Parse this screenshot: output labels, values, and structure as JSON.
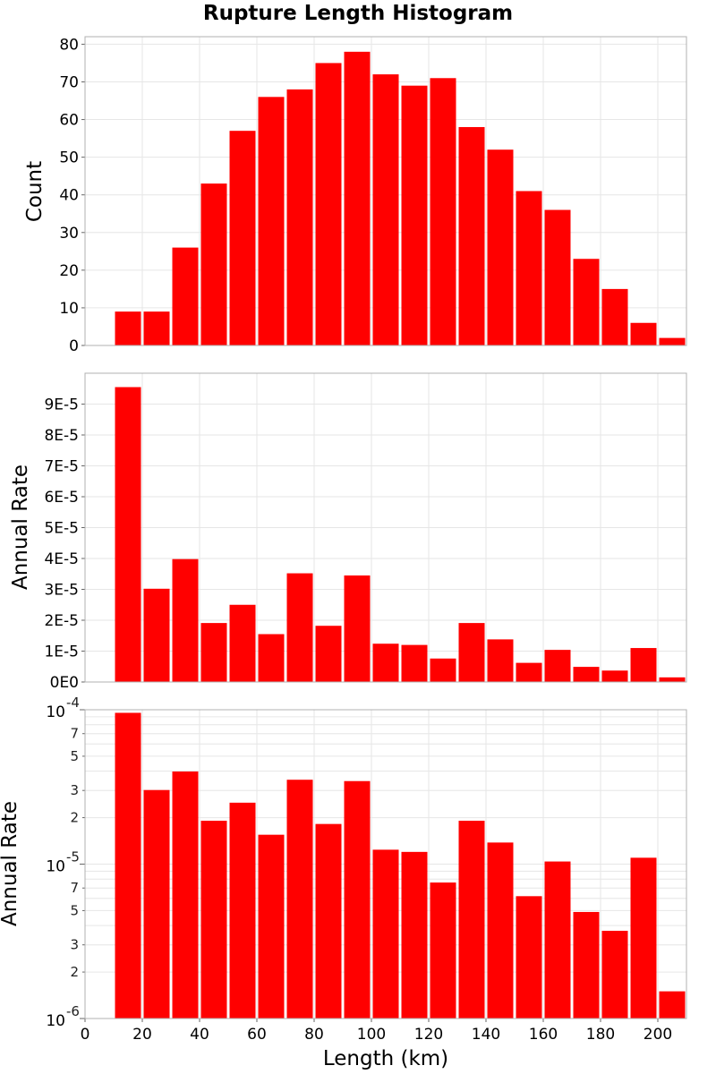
{
  "title": "Rupture Length Histogram",
  "colors": {
    "bar": "#ff0000",
    "grid": "#e6e6e6",
    "frame": "#b0b0b0"
  },
  "chart_data": [
    {
      "type": "bar",
      "xlabel": "Length (km)",
      "ylabel": "Count",
      "xlim": [
        0,
        210
      ],
      "ylim": [
        0,
        82
      ],
      "yticks": [
        0,
        10,
        20,
        30,
        40,
        50,
        60,
        70,
        80
      ],
      "ytick_labels": [
        "0",
        "10",
        "20",
        "30",
        "40",
        "50",
        "60",
        "70",
        "80"
      ],
      "bin_width": 10,
      "x": [
        15,
        25,
        35,
        45,
        55,
        65,
        75,
        85,
        95,
        105,
        115,
        125,
        135,
        145,
        155,
        165,
        175,
        185,
        195,
        205
      ],
      "values": [
        9,
        9,
        26,
        43,
        57,
        66,
        68,
        75,
        78,
        72,
        69,
        71,
        58,
        52,
        41,
        36,
        23,
        15,
        6,
        2
      ],
      "grid": true
    },
    {
      "type": "bar",
      "xlabel": "Length (km)",
      "ylabel": "Annual Rate",
      "xlim": [
        0,
        210
      ],
      "ylim": [
        0,
        0.0001
      ],
      "yticks": [
        0,
        1e-05,
        2e-05,
        3e-05,
        4e-05,
        5e-05,
        6e-05,
        7e-05,
        8e-05,
        9e-05
      ],
      "ytick_labels": [
        "0E0",
        "1E-5",
        "2E-5",
        "3E-5",
        "4E-5",
        "5E-5",
        "6E-5",
        "7E-5",
        "8E-5",
        "9E-5"
      ],
      "bin_width": 10,
      "x": [
        15,
        25,
        35,
        45,
        55,
        65,
        75,
        85,
        95,
        105,
        115,
        125,
        135,
        145,
        155,
        165,
        175,
        185,
        195,
        205
      ],
      "values": [
        9.55e-05,
        3.02e-05,
        3.98e-05,
        1.91e-05,
        2.5e-05,
        1.55e-05,
        3.52e-05,
        1.82e-05,
        3.45e-05,
        1.24e-05,
        1.2e-05,
        7.6e-06,
        1.91e-05,
        1.38e-05,
        6.2e-06,
        1.04e-05,
        4.9e-06,
        3.7e-06,
        1.1e-05,
        1.5e-06
      ],
      "grid": true
    },
    {
      "type": "bar",
      "xlabel": "Length (km)",
      "ylabel": "Annual Rate",
      "xlim": [
        0,
        210
      ],
      "ylim": [
        1e-06,
        0.0001
      ],
      "yscale": "log",
      "xticks": [
        0,
        20,
        40,
        60,
        80,
        100,
        120,
        140,
        160,
        180,
        200
      ],
      "xtick_labels": [
        "0",
        "20",
        "40",
        "60",
        "80",
        "100",
        "120",
        "140",
        "160",
        "180",
        "200"
      ],
      "major_ytick_labels": [
        {
          "value": 0.0001,
          "base": "10",
          "exp": "-4"
        },
        {
          "value": 1e-05,
          "base": "10",
          "exp": "-5"
        },
        {
          "value": 1e-06,
          "base": "10",
          "exp": "-6"
        }
      ],
      "minor_ytick_labels": [
        {
          "value": 7e-05,
          "label": "7"
        },
        {
          "value": 5e-05,
          "label": "5"
        },
        {
          "value": 3e-05,
          "label": "3"
        },
        {
          "value": 2e-05,
          "label": "2"
        },
        {
          "value": 7e-06,
          "label": "7"
        },
        {
          "value": 5e-06,
          "label": "5"
        },
        {
          "value": 3e-06,
          "label": "3"
        },
        {
          "value": 2e-06,
          "label": "2"
        }
      ],
      "bin_width": 10,
      "x": [
        15,
        25,
        35,
        45,
        55,
        65,
        75,
        85,
        95,
        105,
        115,
        125,
        135,
        145,
        155,
        165,
        175,
        185,
        195,
        205
      ],
      "values": [
        9.55e-05,
        3.02e-05,
        3.98e-05,
        1.91e-05,
        2.5e-05,
        1.55e-05,
        3.52e-05,
        1.82e-05,
        3.45e-05,
        1.24e-05,
        1.2e-05,
        7.6e-06,
        1.91e-05,
        1.38e-05,
        6.2e-06,
        1.04e-05,
        4.9e-06,
        3.7e-06,
        1.1e-05,
        1.5e-06
      ],
      "grid": true
    }
  ]
}
